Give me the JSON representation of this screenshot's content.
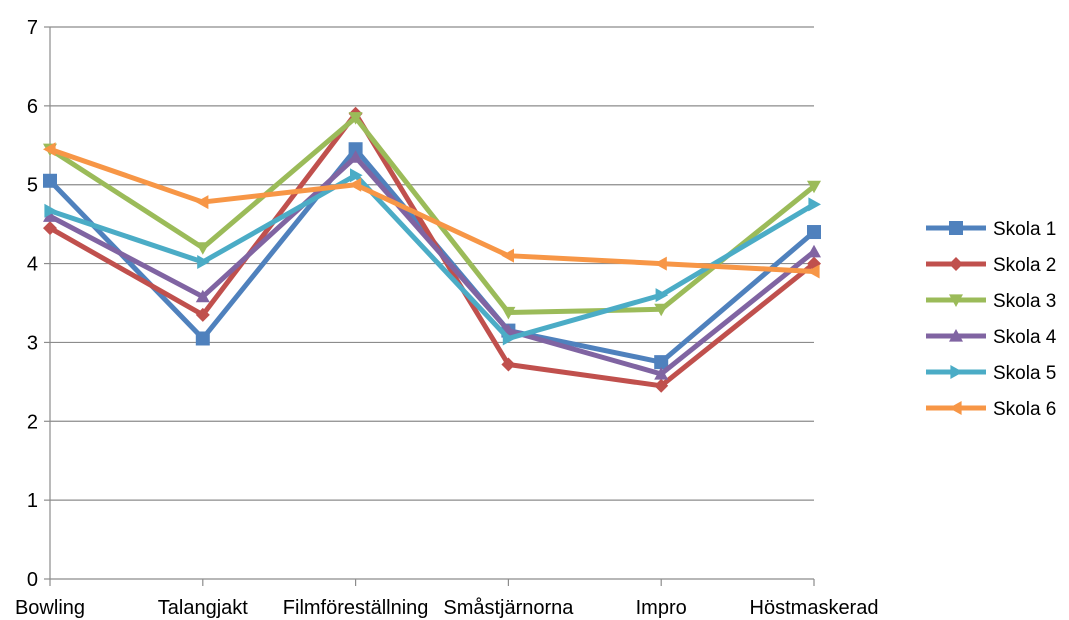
{
  "chart_data": {
    "type": "line",
    "title": "",
    "xlabel": "",
    "ylabel": "",
    "categories": [
      "Bowling",
      "Talangjakt",
      "Filmföreställning",
      "Småstjärnorna",
      "Impro",
      "Höstmaskerad"
    ],
    "ylim": [
      0,
      7
    ],
    "yticks": [
      0,
      1,
      2,
      3,
      4,
      5,
      6,
      7
    ],
    "grid": true,
    "legend": "right",
    "series": [
      {
        "name": "Skola 1",
        "color": "#4F81BD",
        "marker": "square",
        "values": [
          5.05,
          3.05,
          5.45,
          3.15,
          2.75,
          4.4
        ]
      },
      {
        "name": "Skola 2",
        "color": "#C0504D",
        "marker": "diamond",
        "values": [
          4.45,
          3.35,
          5.9,
          2.72,
          2.45,
          4.0
        ]
      },
      {
        "name": "Skola 3",
        "color": "#9BBB59",
        "marker": "triangle-down",
        "values": [
          5.45,
          4.2,
          5.85,
          3.38,
          3.42,
          4.98
        ]
      },
      {
        "name": "Skola 4",
        "color": "#8064A2",
        "marker": "triangle-up",
        "values": [
          4.6,
          3.58,
          5.35,
          3.15,
          2.6,
          4.15
        ]
      },
      {
        "name": "Skola 5",
        "color": "#4BACC6",
        "marker": "triangle-right",
        "values": [
          4.67,
          4.02,
          5.12,
          3.05,
          3.6,
          4.75
        ]
      },
      {
        "name": "Skola 6",
        "color": "#F79646",
        "marker": "triangle-left",
        "values": [
          5.45,
          4.78,
          5.0,
          4.1,
          4.0,
          3.9
        ]
      }
    ]
  }
}
